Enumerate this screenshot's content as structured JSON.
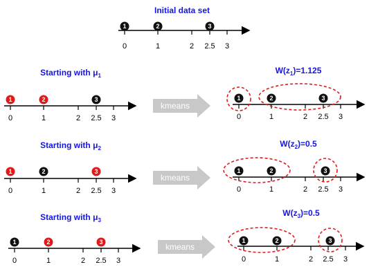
{
  "initial": {
    "title": "Initial data set",
    "points": [
      "1",
      "2",
      "3"
    ],
    "ticks": [
      "0",
      "1",
      "2",
      "2.5",
      "3"
    ]
  },
  "rows": [
    {
      "start_title": "Starting with μ",
      "start_sub": "1",
      "result_title_prefix": "W(z",
      "result_sub": "1",
      "result_title_suffix": ")=1.125",
      "arrow_label": "kmeans",
      "start_colors": [
        "#e01a1a",
        "#e01a1a",
        "#111111"
      ],
      "ticks": [
        "0",
        "1",
        "2",
        "2.5",
        "3"
      ]
    },
    {
      "start_title": "Starting with μ",
      "start_sub": "2",
      "result_title_prefix": "W(z",
      "result_sub": "2",
      "result_title_suffix": ")=0.5",
      "arrow_label": "kmeans",
      "start_colors": [
        "#e01a1a",
        "#111111",
        "#e01a1a"
      ],
      "ticks": [
        "0",
        "1",
        "2",
        "2.5",
        "3"
      ]
    },
    {
      "start_title": "Starting with μ",
      "start_sub": "3",
      "result_title_prefix": "W(z",
      "result_sub": "3",
      "result_title_suffix": ")=0.5",
      "arrow_label": "kmeans",
      "start_colors": [
        "#111111",
        "#e01a1a",
        "#e01a1a"
      ],
      "ticks": [
        "0",
        "1",
        "2",
        "2.5",
        "3"
      ]
    }
  ],
  "colors": {
    "title": "#1515e6",
    "cluster_outline": "#e01a1a",
    "arrow": "#c8c8c8",
    "point_black": "#111111",
    "point_red": "#e01a1a"
  }
}
